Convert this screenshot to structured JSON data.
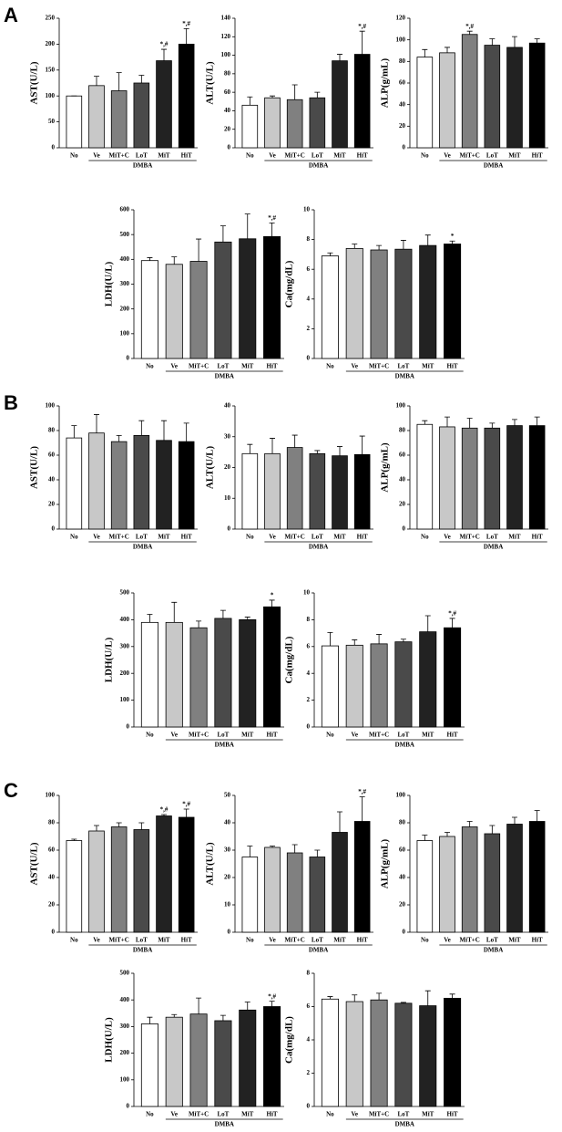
{
  "panel_labels": [
    "A",
    "B",
    "C"
  ],
  "chart_data": [
    {
      "type": "bar",
      "ylabel": "AST(U/L)",
      "categories": [
        "No",
        "Ve",
        "MiT+C",
        "LoT",
        "MiT",
        "HiT"
      ],
      "group_label": "DMBA",
      "colors": [
        "#ffffff",
        "#c8c8c8",
        "#808080",
        "#4a4a4a",
        "#222222",
        "#000000"
      ],
      "values": [
        100,
        120,
        110,
        125,
        168,
        200
      ],
      "errors": [
        0,
        18,
        35,
        15,
        22,
        30
      ],
      "annotations": [
        null,
        null,
        null,
        null,
        "*,#",
        "*,#"
      ],
      "ylim": [
        0,
        250
      ],
      "yticks": [
        0,
        50,
        100,
        150,
        200,
        250
      ]
    },
    {
      "type": "bar",
      "ylabel": "ALT(U/L)",
      "categories": [
        "No",
        "Ve",
        "MiT+C",
        "LoT",
        "MiT",
        "HiT"
      ],
      "group_label": "DMBA",
      "colors": [
        "#ffffff",
        "#c8c8c8",
        "#808080",
        "#4a4a4a",
        "#222222",
        "#000000"
      ],
      "values": [
        46,
        54,
        52,
        54,
        94,
        101
      ],
      "errors": [
        9,
        2,
        16,
        6,
        7,
        25
      ],
      "annotations": [
        null,
        null,
        null,
        null,
        null,
        "*,#"
      ],
      "ylim": [
        0,
        140
      ],
      "yticks": [
        0,
        20,
        40,
        60,
        80,
        100,
        120,
        140
      ]
    },
    {
      "type": "bar",
      "ylabel": "ALP(g/mL)",
      "categories": [
        "No",
        "Ve",
        "MiT+C",
        "LoT",
        "MiT",
        "HiT"
      ],
      "group_label": "DMBA",
      "colors": [
        "#ffffff",
        "#c8c8c8",
        "#808080",
        "#4a4a4a",
        "#222222",
        "#000000"
      ],
      "values": [
        84,
        88,
        105,
        95,
        93,
        97
      ],
      "errors": [
        7,
        5,
        3,
        6,
        10,
        4
      ],
      "annotations": [
        null,
        null,
        "*,#",
        null,
        null,
        null
      ],
      "ylim": [
        0,
        120
      ],
      "yticks": [
        0,
        20,
        40,
        60,
        80,
        100,
        120
      ]
    },
    {
      "type": "bar",
      "ylabel": "LDH(U/L)",
      "categories": [
        "No",
        "Ve",
        "MiT+C",
        "LoT",
        "MiT",
        "HiT"
      ],
      "group_label": "DMBA",
      "colors": [
        "#ffffff",
        "#c8c8c8",
        "#808080",
        "#4a4a4a",
        "#222222",
        "#000000"
      ],
      "values": [
        395,
        380,
        392,
        470,
        483,
        492
      ],
      "errors": [
        12,
        30,
        90,
        65,
        100,
        55
      ],
      "annotations": [
        null,
        null,
        null,
        null,
        null,
        "*,#"
      ],
      "ylim": [
        0,
        600
      ],
      "yticks": [
        0,
        100,
        200,
        300,
        400,
        500,
        600
      ]
    },
    {
      "type": "bar",
      "ylabel": "Ca(mg/dL)",
      "categories": [
        "No",
        "Ve",
        "MiT+C",
        "LoT",
        "MiT",
        "HiT"
      ],
      "group_label": "DMBA",
      "colors": [
        "#ffffff",
        "#c8c8c8",
        "#808080",
        "#4a4a4a",
        "#222222",
        "#000000"
      ],
      "values": [
        6.9,
        7.4,
        7.3,
        7.35,
        7.6,
        7.7
      ],
      "errors": [
        0.2,
        0.3,
        0.3,
        0.6,
        0.7,
        0.2
      ],
      "annotations": [
        null,
        null,
        null,
        null,
        null,
        "*"
      ],
      "ylim": [
        0,
        10
      ],
      "yticks": [
        0,
        2,
        4,
        6,
        8,
        10
      ]
    },
    {
      "type": "bar",
      "ylabel": "AST(U/L)",
      "categories": [
        "No",
        "Ve",
        "MiT+C",
        "LoT",
        "MiT",
        "HiT"
      ],
      "group_label": "DMBA",
      "colors": [
        "#ffffff",
        "#c8c8c8",
        "#808080",
        "#4a4a4a",
        "#222222",
        "#000000"
      ],
      "values": [
        74,
        78,
        71,
        76,
        72,
        71
      ],
      "errors": [
        10,
        15,
        5,
        12,
        16,
        15
      ],
      "annotations": [
        null,
        null,
        null,
        null,
        null,
        null
      ],
      "ylim": [
        0,
        100
      ],
      "yticks": [
        0,
        20,
        40,
        60,
        80,
        100
      ]
    },
    {
      "type": "bar",
      "ylabel": "ALT(U/L)",
      "categories": [
        "No",
        "Ve",
        "MiT+C",
        "LoT",
        "MiT",
        "HiT"
      ],
      "group_label": "DMBA",
      "colors": [
        "#ffffff",
        "#c8c8c8",
        "#808080",
        "#4a4a4a",
        "#222222",
        "#000000"
      ],
      "values": [
        24.5,
        24.5,
        26.5,
        24.5,
        23.8,
        24.2
      ],
      "errors": [
        3,
        5,
        4,
        1,
        3,
        6
      ],
      "annotations": [
        null,
        null,
        null,
        null,
        null,
        null
      ],
      "ylim": [
        0,
        40
      ],
      "yticks": [
        0,
        10,
        20,
        30,
        40
      ]
    },
    {
      "type": "bar",
      "ylabel": "ALP(g/mL)",
      "categories": [
        "No",
        "Ve",
        "MiT+C",
        "LoT",
        "MiT",
        "HiT"
      ],
      "group_label": "DMBA",
      "colors": [
        "#ffffff",
        "#c8c8c8",
        "#808080",
        "#4a4a4a",
        "#222222",
        "#000000"
      ],
      "values": [
        85,
        83,
        82,
        82,
        84,
        84
      ],
      "errors": [
        3,
        8,
        8,
        4,
        5,
        7
      ],
      "annotations": [
        null,
        null,
        null,
        null,
        null,
        null
      ],
      "ylim": [
        0,
        100
      ],
      "yticks": [
        0,
        20,
        40,
        60,
        80,
        100
      ]
    },
    {
      "type": "bar",
      "ylabel": "LDH(U/L)",
      "categories": [
        "No",
        "Ve",
        "MiT+C",
        "LoT",
        "MiT",
        "HiT"
      ],
      "group_label": "DMBA",
      "colors": [
        "#ffffff",
        "#c8c8c8",
        "#808080",
        "#4a4a4a",
        "#222222",
        "#000000"
      ],
      "values": [
        390,
        390,
        370,
        405,
        400,
        448
      ],
      "errors": [
        30,
        75,
        25,
        30,
        10,
        25
      ],
      "annotations": [
        null,
        null,
        null,
        null,
        null,
        "*"
      ],
      "ylim": [
        0,
        500
      ],
      "yticks": [
        0,
        100,
        200,
        300,
        400,
        500
      ]
    },
    {
      "type": "bar",
      "ylabel": "Ca(mg/dL)",
      "categories": [
        "No",
        "Ve",
        "MiT+C",
        "LoT",
        "MiT",
        "HiT"
      ],
      "group_label": "DMBA",
      "colors": [
        "#ffffff",
        "#c8c8c8",
        "#808080",
        "#4a4a4a",
        "#222222",
        "#000000"
      ],
      "values": [
        6.05,
        6.1,
        6.2,
        6.35,
        7.1,
        7.4
      ],
      "errors": [
        1.0,
        0.4,
        0.7,
        0.2,
        1.2,
        0.7
      ],
      "annotations": [
        null,
        null,
        null,
        null,
        null,
        "*,#"
      ],
      "ylim": [
        0,
        10
      ],
      "yticks": [
        0,
        2,
        4,
        6,
        8,
        10
      ]
    },
    {
      "type": "bar",
      "ylabel": "AST(U/L)",
      "categories": [
        "No",
        "Ve",
        "MiT+C",
        "LoT",
        "MiT",
        "HiT"
      ],
      "group_label": "DMBA",
      "colors": [
        "#ffffff",
        "#c8c8c8",
        "#808080",
        "#4a4a4a",
        "#222222",
        "#000000"
      ],
      "values": [
        67,
        74,
        77,
        75,
        85,
        84
      ],
      "errors": [
        1,
        4,
        3,
        5,
        1,
        6
      ],
      "annotations": [
        null,
        null,
        null,
        null,
        "*,#",
        "*,#"
      ],
      "ylim": [
        0,
        100
      ],
      "yticks": [
        0,
        20,
        40,
        60,
        80,
        100
      ]
    },
    {
      "type": "bar",
      "ylabel": "ALT(U/L)",
      "categories": [
        "No",
        "Ve",
        "MiT+C",
        "LoT",
        "MiT",
        "HiT"
      ],
      "group_label": "DMBA",
      "colors": [
        "#ffffff",
        "#c8c8c8",
        "#808080",
        "#4a4a4a",
        "#222222",
        "#000000"
      ],
      "values": [
        27.5,
        31,
        29,
        27.5,
        36.5,
        40.5
      ],
      "errors": [
        4,
        0.5,
        3,
        2.5,
        7.5,
        9
      ],
      "annotations": [
        null,
        null,
        null,
        null,
        null,
        "*,#"
      ],
      "ylim": [
        0,
        50
      ],
      "yticks": [
        0,
        10,
        20,
        30,
        40,
        50
      ]
    },
    {
      "type": "bar",
      "ylabel": "ALP(g/mL)",
      "categories": [
        "No",
        "Ve",
        "MiT+C",
        "LoT",
        "MiT",
        "HiT"
      ],
      "group_label": "DMBA",
      "colors": [
        "#ffffff",
        "#c8c8c8",
        "#808080",
        "#4a4a4a",
        "#222222",
        "#000000"
      ],
      "values": [
        67,
        70,
        77,
        72,
        79,
        81
      ],
      "errors": [
        4,
        3,
        4,
        6,
        5,
        8
      ],
      "annotations": [
        null,
        null,
        null,
        null,
        null,
        null
      ],
      "ylim": [
        0,
        100
      ],
      "yticks": [
        0,
        20,
        40,
        60,
        80,
        100
      ]
    },
    {
      "type": "bar",
      "ylabel": "LDH(U/L)",
      "categories": [
        "No",
        "Ve",
        "MiT+C",
        "LoT",
        "MiT",
        "HiT"
      ],
      "group_label": "DMBA",
      "colors": [
        "#ffffff",
        "#c8c8c8",
        "#808080",
        "#4a4a4a",
        "#222222",
        "#000000"
      ],
      "values": [
        310,
        335,
        347,
        322,
        362,
        375
      ],
      "errors": [
        25,
        10,
        60,
        20,
        30,
        20
      ],
      "annotations": [
        null,
        null,
        null,
        null,
        null,
        "*,#"
      ],
      "ylim": [
        0,
        500
      ],
      "yticks": [
        0,
        100,
        200,
        300,
        400,
        500
      ]
    },
    {
      "type": "bar",
      "ylabel": "Ca(mg/dL)",
      "categories": [
        "No",
        "Ve",
        "MiT+C",
        "LoT",
        "MiT",
        "HiT"
      ],
      "group_label": "DMBA",
      "colors": [
        "#ffffff",
        "#c8c8c8",
        "#808080",
        "#4a4a4a",
        "#222222",
        "#000000"
      ],
      "values": [
        6.45,
        6.3,
        6.4,
        6.2,
        6.05,
        6.5
      ],
      "errors": [
        0.15,
        0.4,
        0.4,
        0.05,
        0.9,
        0.25
      ],
      "annotations": [
        null,
        null,
        null,
        null,
        null,
        null
      ],
      "ylim": [
        0,
        8
      ],
      "yticks": [
        0,
        2,
        4,
        6,
        8
      ]
    }
  ]
}
